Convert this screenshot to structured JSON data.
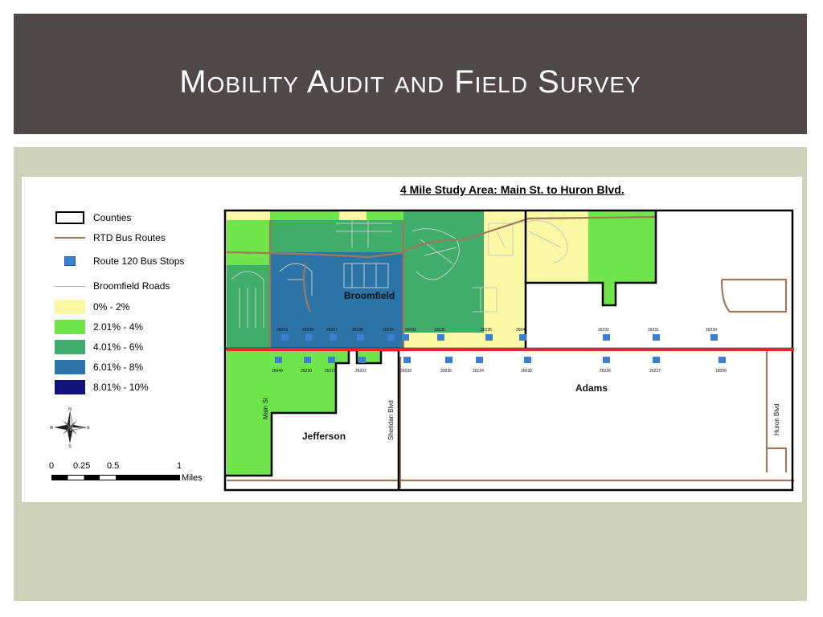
{
  "slide": {
    "title": "Mobility Audit and Field Survey"
  },
  "map": {
    "title": "4 Mile Study Area: Main St. to Huron Blvd.",
    "place_labels": [
      "Broomfield",
      "Jefferson",
      "Adams"
    ],
    "road_labels": [
      "Main St",
      "Sheridan Blvd",
      "Huron Blvd"
    ],
    "stops_north": [
      "26043",
      "26238",
      "26237",
      "26236",
      "26234",
      "33432",
      "33035",
      "26235",
      "26041",
      "26232",
      "26231",
      "26230"
    ],
    "stops_south": [
      "26040",
      "26220",
      "26221",
      "26222",
      "26039",
      "33036",
      "26224",
      "26038",
      "26226",
      "26227",
      "18050"
    ],
    "colors": {
      "band1": "#fbf8a4",
      "band2": "#6fe54a",
      "band3": "#3fae6a",
      "band4": "#2b74a8",
      "band5": "#12137a",
      "route": "#a0785a",
      "study_corridor": "#e3262a",
      "stop": "#3a7fd0"
    }
  },
  "legend": {
    "items": [
      {
        "label": "Counties",
        "symbol": "county-outline"
      },
      {
        "label": "RTD Bus Routes",
        "symbol": "bus-route-line"
      },
      {
        "label": "Route 120 Bus Stops",
        "symbol": "bus-stop-icon"
      },
      {
        "label": "Broomfield Roads",
        "symbol": "road-line"
      },
      {
        "label": "0% - 2%",
        "symbol": "fill",
        "color": "#fbf8a4"
      },
      {
        "label": "2.01% - 4%",
        "symbol": "fill",
        "color": "#6fe54a"
      },
      {
        "label": "4.01% - 6%",
        "symbol": "fill",
        "color": "#3fae6a"
      },
      {
        "label": "6.01% - 8%",
        "symbol": "fill",
        "color": "#2b74a8"
      },
      {
        "label": "8.01% - 10%",
        "symbol": "fill",
        "color": "#12137a"
      }
    ]
  },
  "scale": {
    "ticks": [
      "0",
      "0.25",
      "0.5",
      "1"
    ],
    "unit": "Miles"
  },
  "compass": {
    "labels": [
      "N",
      "E",
      "S",
      "W"
    ]
  }
}
